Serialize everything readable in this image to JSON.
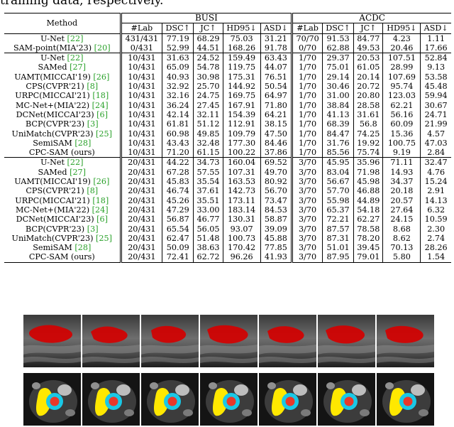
{
  "caption": "training data, respectively.",
  "table": {
    "method_header": "Method",
    "groups": [
      "BUSI",
      "ACDC"
    ],
    "col_headers": [
      "#Lab",
      "DSC↑",
      "JC↑",
      "HD95↓",
      "ASD↓",
      "#Lab",
      "DSC↑",
      "JC↑",
      "HD95↓",
      "ASD↓"
    ],
    "sections": [
      {
        "rows": [
          {
            "method": "U-Net",
            "cite": "[22]",
            "cells": [
              "431/431",
              "77.19",
              "68.29",
              "75.03",
              "31.21",
              "70/70",
              "91.53",
              "84.77",
              "4.23",
              "1.11"
            ],
            "bold": []
          },
          {
            "method": "SAM-point(MIA'23)",
            "cite": "[20]",
            "cells": [
              "0/431",
              "52.99",
              "44.51",
              "168.26",
              "91.78",
              "0/70",
              "62.88",
              "49.53",
              "20.46",
              "17.66"
            ],
            "bold": []
          }
        ]
      },
      {
        "rows": [
          {
            "method": "U-Net",
            "cite": "[22]",
            "cells": [
              "10/431",
              "31.63",
              "24.52",
              "159.49",
              "63.43",
              "1/70",
              "29.37",
              "20.53",
              "107.51",
              "52.84"
            ],
            "bold": []
          },
          {
            "method": "SAMed",
            "cite": "[27]",
            "cells": [
              "10/431",
              "65.09",
              "54.78",
              "119.75",
              "44.07",
              "1/70",
              "75.01",
              "61.05",
              "28.99",
              "9.13"
            ],
            "bold": []
          },
          {
            "method": "UAMT(MICCAI'19)",
            "cite": "[26]",
            "cells": [
              "10/431",
              "40.93",
              "30.98",
              "175.31",
              "76.51",
              "1/70",
              "29.14",
              "20.14",
              "107.69",
              "53.58"
            ],
            "bold": []
          },
          {
            "method": "CPS(CVPR'21)",
            "cite": "[8]",
            "cells": [
              "10/431",
              "32.92",
              "25.70",
              "144.92",
              "50.54",
              "1/70",
              "30.46",
              "20.72",
              "95.74",
              "45.48"
            ],
            "bold": []
          },
          {
            "method": "URPC(MICCAI'21)",
            "cite": "[18]",
            "cells": [
              "10/431",
              "32.16",
              "24.75",
              "169.75",
              "64.97",
              "1/70",
              "31.00",
              "20.80",
              "123.03",
              "59.94"
            ],
            "bold": []
          },
          {
            "method": "MC-Net+(MIA'22)",
            "cite": "[24]",
            "cells": [
              "10/431",
              "36.24",
              "27.45",
              "167.91",
              "71.80",
              "1/70",
              "38.84",
              "28.58",
              "62.21",
              "30.67"
            ],
            "bold": []
          },
          {
            "method": "DCNet(MICCAI'23)",
            "cite": "[6]",
            "cells": [
              "10/431",
              "42.14",
              "32.11",
              "154.39",
              "64.21",
              "1/70",
              "41.13",
              "31.61",
              "56.16",
              "24.71"
            ],
            "bold": []
          },
          {
            "method": "BCP(CVPR'23)",
            "cite": "[3]",
            "cells": [
              "10/431",
              "61.81",
              "51.12",
              "112.91",
              "38.15",
              "1/70",
              "68.39",
              "56.8",
              "60.09",
              "21.99"
            ],
            "bold": []
          },
          {
            "method": "UniMatch(CVPR'23)",
            "cite": "[25]",
            "cells": [
              "10/431",
              "60.98",
              "49.85",
              "109.79",
              "47.50",
              "1/70",
              "84.47",
              "74.25",
              "15.36",
              "4.57"
            ],
            "bold": []
          },
          {
            "method": "SemiSAM",
            "cite": "[28]",
            "cells": [
              "10/431",
              "43.43",
              "32.48",
              "177.30",
              "84.46",
              "1/70",
              "31.76",
              "19.92",
              "100.75",
              "47.03"
            ],
            "bold": []
          },
          {
            "method": "CPC-SAM (ours)",
            "cite": "",
            "cells": [
              "10/431",
              "71.20",
              "61.15",
              "100.22",
              "37.86",
              "1/70",
              "85.56",
              "75.74",
              "9.19",
              "2.84"
            ],
            "bold": [
              1,
              2,
              3,
              4,
              6,
              7,
              8,
              9
            ]
          }
        ]
      },
      {
        "rows": [
          {
            "method": "U-Net",
            "cite": "[22]",
            "cells": [
              "20/431",
              "44.22",
              "34.73",
              "160.04",
              "69.52",
              "3/70",
              "45.95",
              "35.96",
              "71.11",
              "32.47"
            ],
            "bold": []
          },
          {
            "method": "SAMed",
            "cite": "[27]",
            "cells": [
              "20/431",
              "67.28",
              "57.55",
              "107.31",
              "49.70",
              "3/70",
              "83.04",
              "71.98",
              "14.93",
              "4.76"
            ],
            "bold": []
          },
          {
            "method": "UAMT(MICCAI'19)",
            "cite": "[26]",
            "cells": [
              "20/431",
              "45.83",
              "35.54",
              "163.53",
              "80.92",
              "3/70",
              "56.67",
              "45.98",
              "34.37",
              "15.24"
            ],
            "bold": []
          },
          {
            "method": "CPS(CVPR'21)",
            "cite": "[8]",
            "cells": [
              "20/431",
              "46.74",
              "37.61",
              "142.73",
              "56.70",
              "3/70",
              "57.70",
              "46.88",
              "20.18",
              "2.91"
            ],
            "bold": []
          },
          {
            "method": "URPC(MICCAI'21)",
            "cite": "[18]",
            "cells": [
              "20/431",
              "45.26",
              "35.51",
              "173.11",
              "73.47",
              "3/70",
              "55.98",
              "44.89",
              "20.57",
              "14.13"
            ],
            "bold": []
          },
          {
            "method": "MC-Net+(MIA'22)",
            "cite": "[24]",
            "cells": [
              "20/431",
              "47.29",
              "33.00",
              "183.14",
              "84.53",
              "3/70",
              "65.37",
              "54.18",
              "27.64",
              "6.32"
            ],
            "bold": []
          },
          {
            "method": "DCNet(MICCAI'23)",
            "cite": "[6]",
            "cells": [
              "20/431",
              "56.87",
              "46.77",
              "130.31",
              "58.87",
              "3/70",
              "72.21",
              "62.27",
              "24.15",
              "10.59"
            ],
            "bold": []
          },
          {
            "method": "BCP(CVPR'23)",
            "cite": "[3]",
            "cells": [
              "20/431",
              "65.54",
              "56.05",
              "93.07",
              "39.09",
              "3/70",
              "87.57",
              "78.58",
              "8.68",
              "2.30"
            ],
            "bold": [
              3,
              4
            ]
          },
          {
            "method": "UniMatch(CVPR'23)",
            "cite": "[25]",
            "cells": [
              "20/431",
              "62.47",
              "51.48",
              "100.73",
              "45.88",
              "3/70",
              "87.31",
              "78.20",
              "8.62",
              "2.74"
            ],
            "bold": []
          },
          {
            "method": "SemiSAM",
            "cite": "[28]",
            "cells": [
              "20/431",
              "50.09",
              "38.63",
              "170.42",
              "77.85",
              "3/70",
              "51.01",
              "39.45",
              "70.13",
              "28.26"
            ],
            "bold": []
          },
          {
            "method": "CPC-SAM (ours)",
            "cite": "",
            "cells": [
              "20/431",
              "72.41",
              "62.72",
              "96.26",
              "41.93",
              "3/70",
              "87.95",
              "79.01",
              "5.80",
              "1.54"
            ],
            "bold": [
              1,
              2,
              6,
              7,
              8,
              9
            ]
          }
        ]
      }
    ]
  },
  "colors": {
    "cite": "#2aa12a",
    "us_mask": "#d40000",
    "mr_fill": "#ffe800",
    "mr_ring": "#19c8e6",
    "mr_core": "#e8382a"
  }
}
